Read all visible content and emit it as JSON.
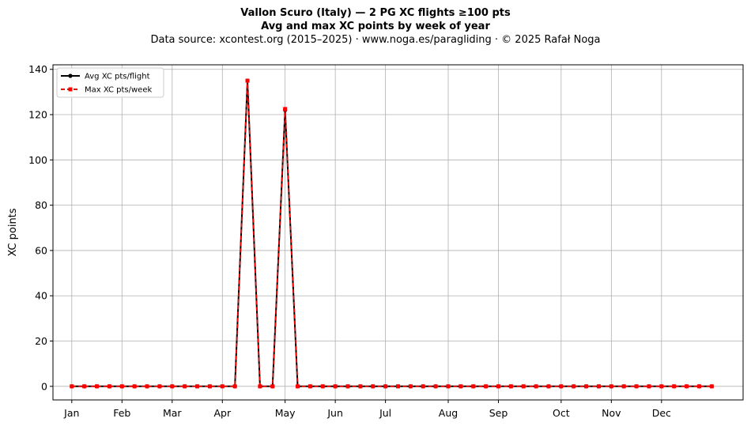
{
  "chart_data": {
    "type": "line",
    "title": "Vallon Scuro (Italy)  —  2 PG XC flights ≥100 pts",
    "subtitle": "Avg and max XC points by week of year",
    "source_line": "Data source: xcontest.org (2015–2025)  ·  www.noga.es/paragliding  ·  © 2025 Rafał Noga",
    "xlabel": "",
    "ylabel": "XC points",
    "ylim": [
      -6,
      142
    ],
    "yticks": [
      0,
      20,
      40,
      60,
      80,
      100,
      120,
      140
    ],
    "xlim": [
      -1.5,
      53.5
    ],
    "xticks": [
      {
        "week": 0,
        "label": "Jan"
      },
      {
        "week": 4,
        "label": "Feb"
      },
      {
        "week": 8,
        "label": "Mar"
      },
      {
        "week": 12,
        "label": "Apr"
      },
      {
        "week": 17,
        "label": "May"
      },
      {
        "week": 21,
        "label": "Jun"
      },
      {
        "week": 25,
        "label": "Jul"
      },
      {
        "week": 30,
        "label": "Aug"
      },
      {
        "week": 34,
        "label": "Sep"
      },
      {
        "week": 39,
        "label": "Oct"
      },
      {
        "week": 43,
        "label": "Nov"
      },
      {
        "week": 47,
        "label": "Dec"
      }
    ],
    "grid": true,
    "legend_position": "top-left",
    "x": [
      0,
      1,
      2,
      3,
      4,
      5,
      6,
      7,
      8,
      9,
      10,
      11,
      12,
      13,
      14,
      15,
      16,
      17,
      18,
      19,
      20,
      21,
      22,
      23,
      24,
      25,
      26,
      27,
      28,
      29,
      30,
      31,
      32,
      33,
      34,
      35,
      36,
      37,
      38,
      39,
      40,
      41,
      42,
      43,
      44,
      45,
      46,
      47,
      48,
      49,
      50,
      51
    ],
    "series": [
      {
        "name": "Avg XC pts/flight",
        "color": "#000000",
        "style": "solid",
        "marker": "circle",
        "values": [
          0,
          0,
          0,
          0,
          0,
          0,
          0,
          0,
          0,
          0,
          0,
          0,
          0,
          0,
          135,
          0,
          0,
          122,
          0,
          0,
          0,
          0,
          0,
          0,
          0,
          0,
          0,
          0,
          0,
          0,
          0,
          0,
          0,
          0,
          0,
          0,
          0,
          0,
          0,
          0,
          0,
          0,
          0,
          0,
          0,
          0,
          0,
          0,
          0,
          0,
          0,
          0
        ]
      },
      {
        "name": "Max XC pts/week",
        "color": "#ff0000",
        "style": "dashed",
        "marker": "square",
        "values": [
          0,
          0,
          0,
          0,
          0,
          0,
          0,
          0,
          0,
          0,
          0,
          0,
          0,
          0,
          135,
          0,
          0,
          122.5,
          0,
          0,
          0,
          0,
          0,
          0,
          0,
          0,
          0,
          0,
          0,
          0,
          0,
          0,
          0,
          0,
          0,
          0,
          0,
          0,
          0,
          0,
          0,
          0,
          0,
          0,
          0,
          0,
          0,
          0,
          0,
          0,
          0,
          0
        ]
      }
    ]
  }
}
